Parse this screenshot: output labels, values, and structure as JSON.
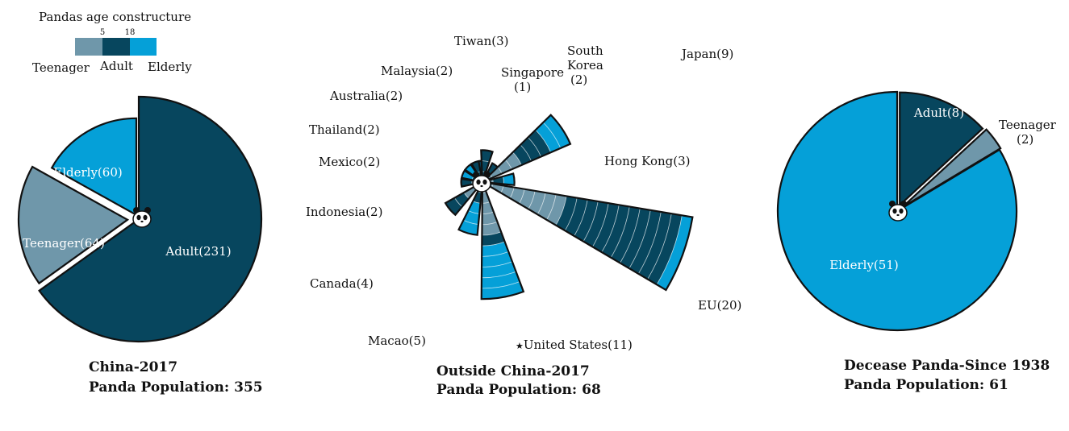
{
  "legend": {
    "title": "Pandas age constructure",
    "breaks": [
      "5",
      "18"
    ],
    "items": [
      {
        "label": "Teenager",
        "color": "#6f97aa"
      },
      {
        "label": "Adult",
        "color": "#07465e"
      },
      {
        "label": "Elderly",
        "color": "#05a0d8"
      }
    ]
  },
  "chart_data": [
    {
      "type": "pie",
      "id": "china",
      "caption": [
        "China-2017",
        "Panda Population: 355"
      ],
      "slices": [
        {
          "label": "Adult(231)",
          "group": "Adult",
          "value": 231
        },
        {
          "label": "Teenager(64)",
          "group": "Teenager",
          "value": 64
        },
        {
          "label": "Elderly(60)",
          "group": "Elderly",
          "value": 60
        }
      ]
    },
    {
      "type": "polar-bar",
      "id": "outside",
      "caption": [
        "Outside China-2017",
        "Panda Population: 68"
      ],
      "unit_rings": true,
      "categories": [
        {
          "label": "EU(20)",
          "total": 20,
          "teen": 8,
          "adult": 11,
          "elder": 1
        },
        {
          "label": "United States(11)",
          "total": 11,
          "teen": 5,
          "adult": 1,
          "elder": 5,
          "marker": "★"
        },
        {
          "label": "Macao(5)",
          "total": 5,
          "teen": 0,
          "adult": 2,
          "elder": 3
        },
        {
          "label": "Canada(4)",
          "total": 4,
          "teen": 2,
          "adult": 2,
          "elder": 0
        },
        {
          "label": "Indonesia(2)",
          "total": 2,
          "teen": 0,
          "adult": 2,
          "elder": 0
        },
        {
          "label": "Mexico(2)",
          "total": 2,
          "teen": 0,
          "adult": 1,
          "elder": 1
        },
        {
          "label": "Thailand(2)",
          "total": 2,
          "teen": 0,
          "adult": 1,
          "elder": 1
        },
        {
          "label": "Australia(2)",
          "total": 2,
          "teen": 0,
          "adult": 2,
          "elder": 0
        },
        {
          "label": "Malaysia(2)",
          "total": 2,
          "teen": 0,
          "adult": 2,
          "elder": 0
        },
        {
          "label": "Tiwan(3)",
          "total": 3,
          "teen": 0,
          "adult": 3,
          "elder": 0
        },
        {
          "label": "Singapore (1)",
          "total": 1,
          "teen": 0,
          "adult": 1,
          "elder": 0
        },
        {
          "label": "South Korea (2)",
          "total": 2,
          "teen": 0,
          "adult": 2,
          "elder": 0
        },
        {
          "label": "Japan(9)",
          "total": 9,
          "teen": 4,
          "adult": 3,
          "elder": 2
        },
        {
          "label": "Hong Kong(3)",
          "total": 3,
          "teen": 1,
          "adult": 1,
          "elder": 1
        }
      ]
    },
    {
      "type": "pie",
      "id": "decease",
      "caption": [
        "Decease Panda-Since 1938",
        "Panda Population: 61"
      ],
      "slices": [
        {
          "label": "Adult(8)",
          "group": "Adult",
          "value": 8
        },
        {
          "label": "Teenager (2)",
          "group": "Teenager",
          "value": 2
        },
        {
          "label": "Elderly(51)",
          "group": "Elderly",
          "value": 51
        }
      ]
    }
  ]
}
